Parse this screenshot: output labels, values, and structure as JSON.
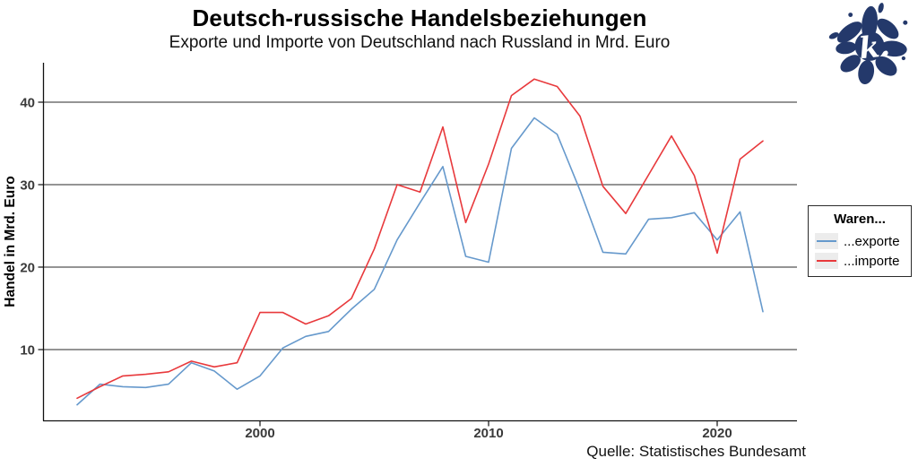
{
  "caption": "Quelle: Statistisches Bundesamt",
  "logo": {
    "letter": "k.",
    "color": "#24396B",
    "name": "ink-splat-k-logo"
  },
  "legend": {
    "title": "Waren...",
    "entries": [
      {
        "label": "...exporte",
        "color": "#6699CC"
      },
      {
        "label": "...importe",
        "color": "#E8393C"
      }
    ]
  },
  "chart_data": {
    "type": "line",
    "title": "Deutsch-russische Handelsbeziehungen",
    "subtitle": "Exporte und Importe von Deutschland nach Russland in Mrd. Euro",
    "xlabel": "",
    "ylabel": "Handel in Mrd. Euro",
    "x": [
      1992,
      1993,
      1994,
      1995,
      1996,
      1997,
      1998,
      1999,
      2000,
      2001,
      2002,
      2003,
      2004,
      2005,
      2006,
      2007,
      2008,
      2009,
      2010,
      2011,
      2012,
      2013,
      2014,
      2015,
      2016,
      2017,
      2018,
      2019,
      2020,
      2021,
      2022
    ],
    "series": [
      {
        "name": "...exporte",
        "color": "#6699CC",
        "values": [
          3.3,
          5.8,
          5.5,
          5.4,
          5.8,
          8.4,
          7.4,
          5.2,
          6.8,
          10.2,
          11.6,
          12.2,
          14.9,
          17.3,
          23.3,
          27.8,
          32.2,
          21.3,
          20.6,
          34.4,
          38.1,
          36.1,
          29.3,
          21.8,
          21.6,
          25.8,
          26.0,
          26.6,
          23.3,
          26.7,
          14.6
        ]
      },
      {
        "name": "...importe",
        "color": "#E8393C",
        "values": [
          4.1,
          5.5,
          6.8,
          7.0,
          7.3,
          8.6,
          7.9,
          8.4,
          14.5,
          14.5,
          13.1,
          14.1,
          16.2,
          22.2,
          30.0,
          29.1,
          37.0,
          25.4,
          32.5,
          40.8,
          42.8,
          41.9,
          38.3,
          29.8,
          26.5,
          31.2,
          35.9,
          31.1,
          21.7,
          33.1,
          35.3
        ]
      }
    ],
    "xticks": [
      2000,
      2010,
      2020
    ],
    "yticks": [
      10,
      20,
      30,
      40
    ],
    "xlim": [
      1990.5,
      2023.5
    ],
    "ylim": [
      1.4,
      44.8
    ],
    "grid": "horizontal-major-only",
    "grid_color": "#545454",
    "axis_text_color": "#3a3a3a",
    "legend_position": "right"
  }
}
